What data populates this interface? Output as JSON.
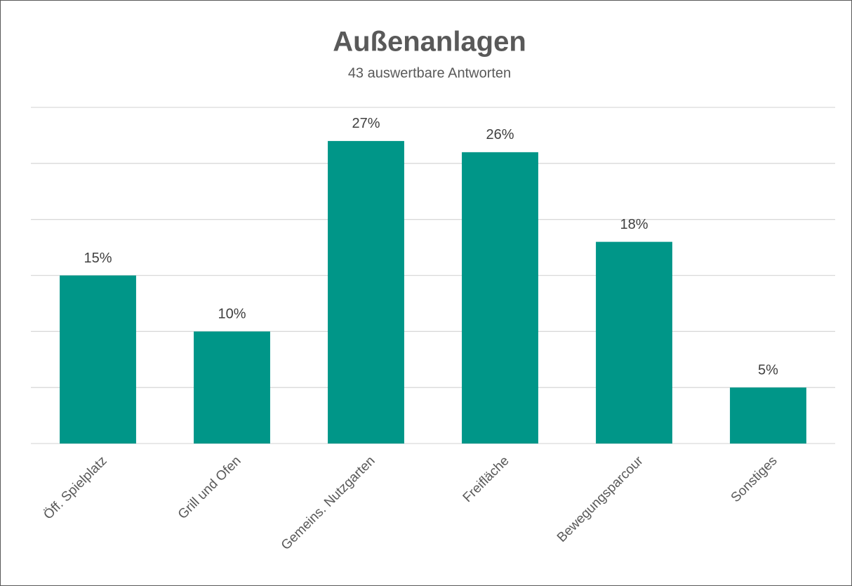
{
  "chart_data": {
    "type": "bar",
    "title": "Außenanlagen",
    "subtitle": "43 auswertbare Antworten",
    "categories": [
      "Öff. Spielplatz",
      "Grill und Ofen",
      "Gemeins. Nutzgarten",
      "Freifläche",
      "Bewegungsparcour",
      "Sonstiges"
    ],
    "values": [
      15,
      10,
      27,
      26,
      18,
      5
    ],
    "value_labels": [
      "15%",
      "10%",
      "27%",
      "26%",
      "18%",
      "5%"
    ],
    "color": "#009688",
    "ylim": [
      0,
      30
    ],
    "yticks": [
      0,
      5,
      10,
      15,
      20,
      25,
      30
    ],
    "grid": true
  }
}
